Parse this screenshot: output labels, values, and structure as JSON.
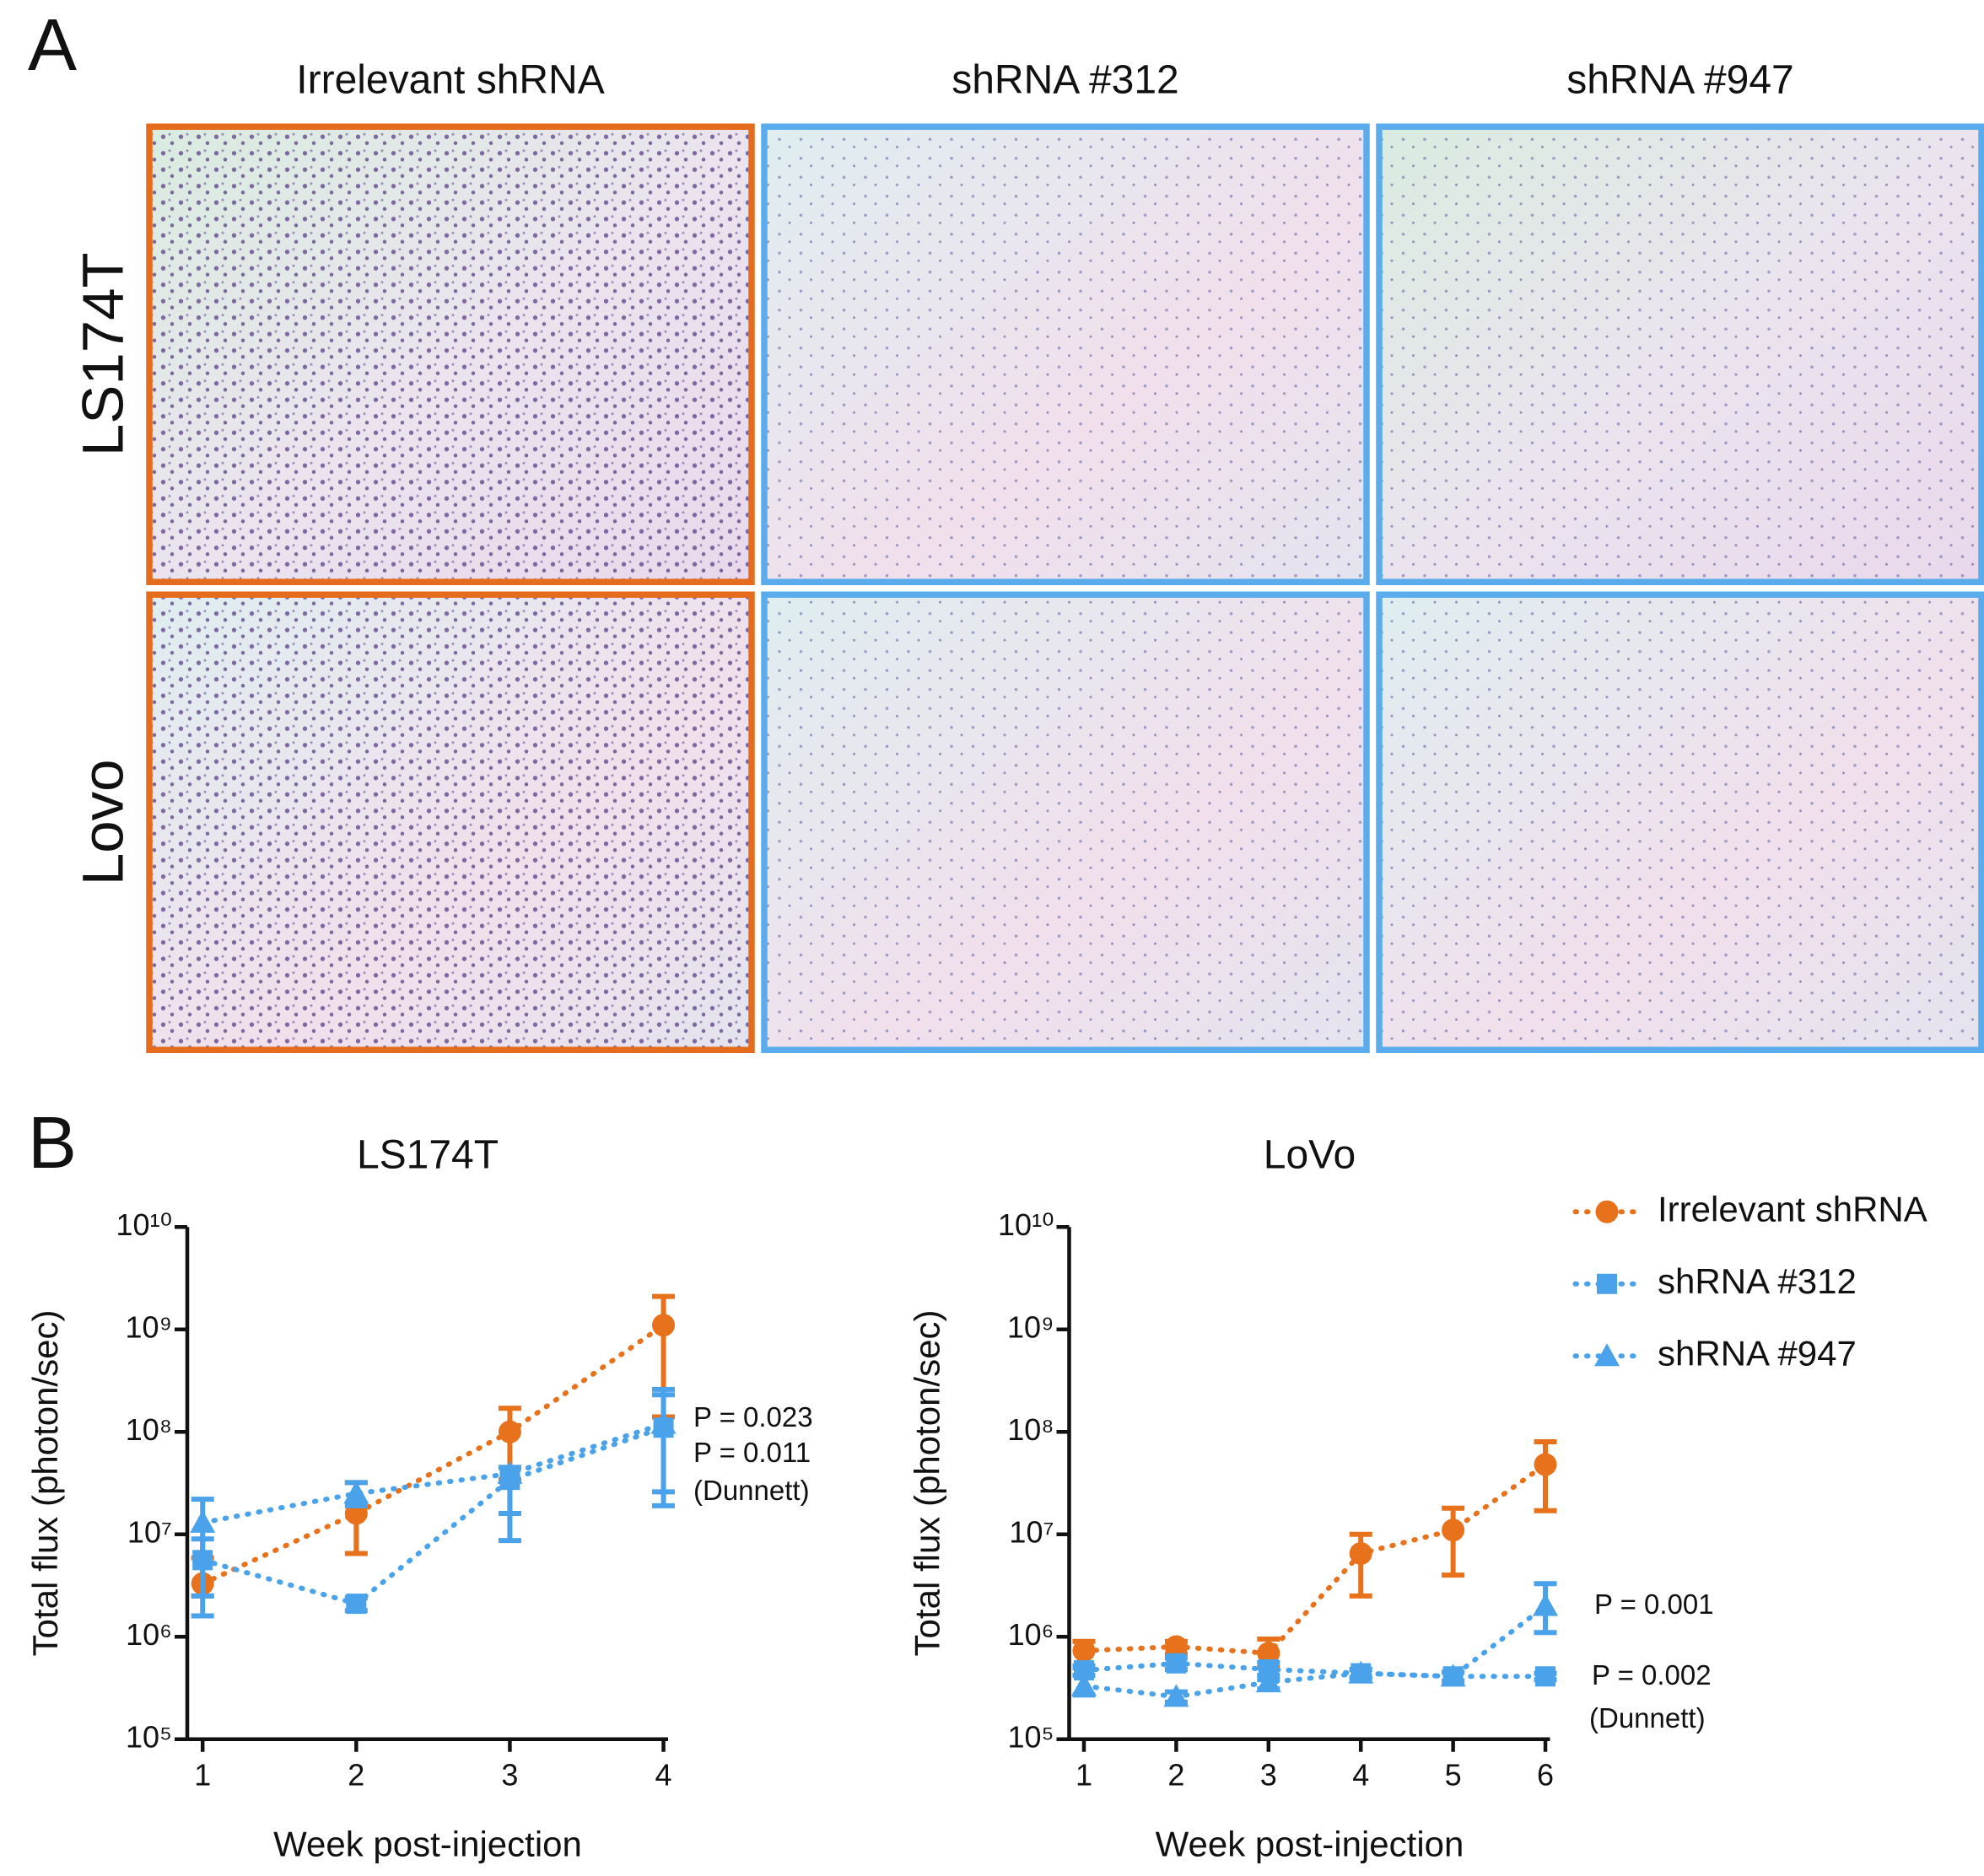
{
  "panel_a": {
    "label": "A",
    "columns": [
      "Irrelevant shRNA",
      "shRNA #312",
      "shRNA #947"
    ],
    "rows": [
      "LS174T",
      "Lovo"
    ]
  },
  "panel_b_label": "B",
  "chart_data": [
    {
      "type": "line",
      "title": "LS174T",
      "x_label": "Week post-injection",
      "y_label": "Total flux (photon/sec)",
      "x": [
        1,
        2,
        3,
        4
      ],
      "xlim": [
        0.9,
        4.03
      ],
      "xticks": [
        1,
        2,
        3,
        4
      ],
      "ylim": [
        100000,
        10000000000
      ],
      "log_y": true,
      "yticks": [
        {
          "value": 100000,
          "label": "10⁵"
        },
        {
          "value": 1000000,
          "label": "10⁶"
        },
        {
          "value": 10000000,
          "label": "10⁷"
        },
        {
          "value": 100000000,
          "label": "10⁸"
        },
        {
          "value": 1000000000,
          "label": "10⁹"
        },
        {
          "value": 10000000000,
          "label": "10¹⁰"
        }
      ],
      "series": [
        {
          "name": "Irrelevant shRNA",
          "color": "#e8711c",
          "marker": "circle",
          "values": [
            3300000,
            16000000,
            100000000,
            1100000000
          ],
          "lower": [
            2500000,
            6500000,
            34000000,
            140000000
          ],
          "upper": [
            5900000,
            32000000,
            170000000,
            2100000000
          ]
        },
        {
          "name": "shRNA #312",
          "color": "#4aa3ea",
          "marker": "square",
          "values": [
            5600000,
            2100000,
            34000000,
            110000000
          ],
          "lower": [
            2500000,
            1800000,
            8700000,
            19000000
          ],
          "upper": [
            9000000,
            2400000,
            45000000,
            260000000
          ]
        },
        {
          "name": "shRNA #947",
          "color": "#4aa3ea",
          "marker": "triangle",
          "values": [
            13000000,
            25000000,
            39000000,
            120000000
          ],
          "lower": [
            1600000,
            19000000,
            16000000,
            26000000
          ],
          "upper": [
            22000000,
            32000000,
            45000000,
            230000000
          ]
        }
      ],
      "annotations": [
        "P = 0.023",
        "P = 0.011",
        "(Dunnett)"
      ]
    },
    {
      "type": "line",
      "title": "LoVo",
      "x_label": "Week post-injection",
      "y_label": "Total flux (photon/sec)",
      "x": [
        1,
        2,
        3,
        4,
        5,
        6
      ],
      "xlim": [
        0.84,
        6.05
      ],
      "xticks": [
        1,
        2,
        3,
        4,
        5,
        6
      ],
      "ylim": [
        100000,
        10000000000
      ],
      "log_y": true,
      "yticks": [
        {
          "value": 100000,
          "label": "10⁵"
        },
        {
          "value": 1000000,
          "label": "10⁶"
        },
        {
          "value": 10000000,
          "label": "10⁷"
        },
        {
          "value": 100000000,
          "label": "10⁸"
        },
        {
          "value": 1000000000,
          "label": "10⁹"
        },
        {
          "value": 10000000000,
          "label": "10¹⁰"
        }
      ],
      "legend": "upper right",
      "series": [
        {
          "name": "Irrelevant shRNA",
          "color": "#e8711c",
          "marker": "circle",
          "values": [
            730000,
            800000,
            690000,
            6500000,
            11000000,
            48000000
          ],
          "lower": [
            500000,
            680000,
            500000,
            2500000,
            4000000,
            17000000
          ],
          "upper": [
            900000,
            900000,
            950000,
            10000000,
            18000000,
            80000000
          ]
        },
        {
          "name": "shRNA #312",
          "color": "#4aa3ea",
          "marker": "square",
          "values": [
            470000,
            550000,
            480000,
            440000,
            410000,
            410000
          ],
          "lower": [
            420000,
            480000,
            380000,
            400000,
            370000,
            380000
          ],
          "upper": [
            520000,
            620000,
            560000,
            480000,
            450000,
            440000
          ]
        },
        {
          "name": "shRNA #947",
          "color": "#4aa3ea",
          "marker": "triangle",
          "values": [
            330000,
            260000,
            360000,
            440000,
            410000,
            2000000
          ],
          "lower": [
            270000,
            230000,
            310000,
            400000,
            370000,
            1100000
          ],
          "upper": [
            500000,
            290000,
            420000,
            480000,
            450000,
            3300000
          ]
        }
      ],
      "annotations": [
        "P = 0.001",
        "P = 0.002",
        "(Dunnett)"
      ]
    }
  ]
}
